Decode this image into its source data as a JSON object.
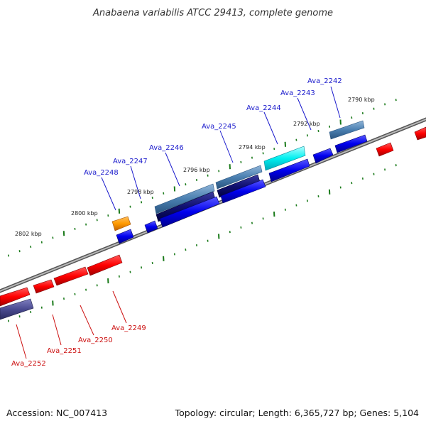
{
  "title": "Anabaena variabilis ATCC 29413, complete genome",
  "footer": {
    "accession": "Accession: NC_007413",
    "summary": "Topology: circular; Length: 6,365,727 bp; Genes: 5,104"
  },
  "kbp_labels": [
    "2790 kbp",
    "2792 kbp",
    "2794 kbp",
    "2796 kbp",
    "2798 kbp",
    "2800 kbp",
    "2802 kbp"
  ],
  "forward_labels": [
    "Ava_2242",
    "Ava_2243",
    "Ava_2244",
    "Ava_2245",
    "Ava_2246",
    "Ava_2247",
    "Ava_2248"
  ],
  "reverse_labels": [
    "Ava_2249",
    "Ava_2250",
    "Ava_2251",
    "Ava_2252"
  ],
  "colors": {
    "forward_label": "#1a1acc",
    "reverse_label": "#cc1111",
    "backbone": "#8a8a8a",
    "tick": "#1a7a1a"
  }
}
